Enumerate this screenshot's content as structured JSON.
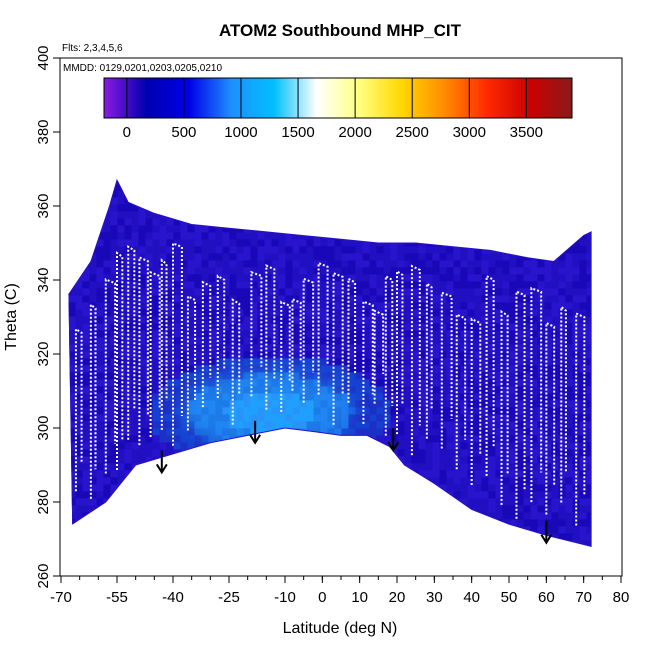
{
  "chart_data": {
    "type": "heatmap",
    "title": "ATOM2 Southbound MHP_CIT",
    "flights_note": "Flts: 2,3,4,5,6",
    "dates_note": "MMDD: 0129,0201,0203,0205,0210",
    "xlabel": "Latitude (deg N)",
    "ylabel": "Theta (C)",
    "xlim": [
      -70,
      80
    ],
    "ylim": [
      260,
      400
    ],
    "x_ticks": [
      -70,
      -55,
      -40,
      -25,
      -10,
      0,
      10,
      20,
      30,
      40,
      50,
      60,
      70,
      80
    ],
    "y_ticks": [
      260,
      280,
      300,
      320,
      340,
      360,
      380,
      400
    ],
    "colorbar": {
      "range": [
        -200,
        3900
      ],
      "ticks": [
        0,
        500,
        1000,
        1500,
        2000,
        2500,
        3000,
        3500
      ],
      "colors": [
        "#8a1be0",
        "#0000b0",
        "#0000e8",
        "#1e90ff",
        "#00bfff",
        "#ffffff",
        "#ffff80",
        "#ffd700",
        "#ff8c00",
        "#ff2a00",
        "#cc0000",
        "#8b1a1a"
      ]
    },
    "surface_profile": {
      "lat": [
        -67,
        -58,
        -50,
        -40,
        -30,
        -20,
        -10,
        -2,
        5,
        12,
        18,
        22,
        30,
        40,
        50,
        60,
        68,
        72
      ],
      "theta": [
        274,
        280,
        290,
        293,
        296,
        298,
        300,
        299,
        298,
        298,
        295,
        290,
        285,
        278,
        274,
        271,
        269,
        268
      ]
    },
    "top_profile": {
      "lat": [
        -68,
        -62,
        -57,
        -55,
        -52,
        -45,
        -35,
        -25,
        -15,
        -5,
        5,
        15,
        25,
        35,
        45,
        55,
        62,
        70,
        72
      ],
      "theta": [
        336,
        345,
        360,
        367,
        361,
        358,
        355,
        354,
        353,
        352,
        351,
        350,
        350,
        349,
        348,
        346,
        345,
        352,
        353
      ]
    },
    "high_value_region": {
      "lat_range": [
        -48,
        20
      ],
      "theta_range": [
        293,
        326
      ],
      "peak": {
        "lat": -15,
        "theta": 305,
        "value": 1200
      }
    },
    "vertical_profiles_lat": [
      -66,
      -62,
      -58,
      -55,
      -52,
      -49,
      -46,
      -43,
      -40,
      -36,
      -32,
      -28,
      -24,
      -19,
      -15,
      -11,
      -8,
      -5,
      -1,
      3,
      7,
      11,
      14,
      17,
      20,
      24,
      28,
      32,
      36,
      40,
      44,
      48,
      52,
      56,
      60,
      64,
      68
    ],
    "arrows": [
      {
        "lat": -43,
        "theta": 288
      },
      {
        "lat": -18,
        "theta": 296
      },
      {
        "lat": 19,
        "theta": 294
      },
      {
        "lat": 60,
        "theta": 269
      }
    ]
  }
}
